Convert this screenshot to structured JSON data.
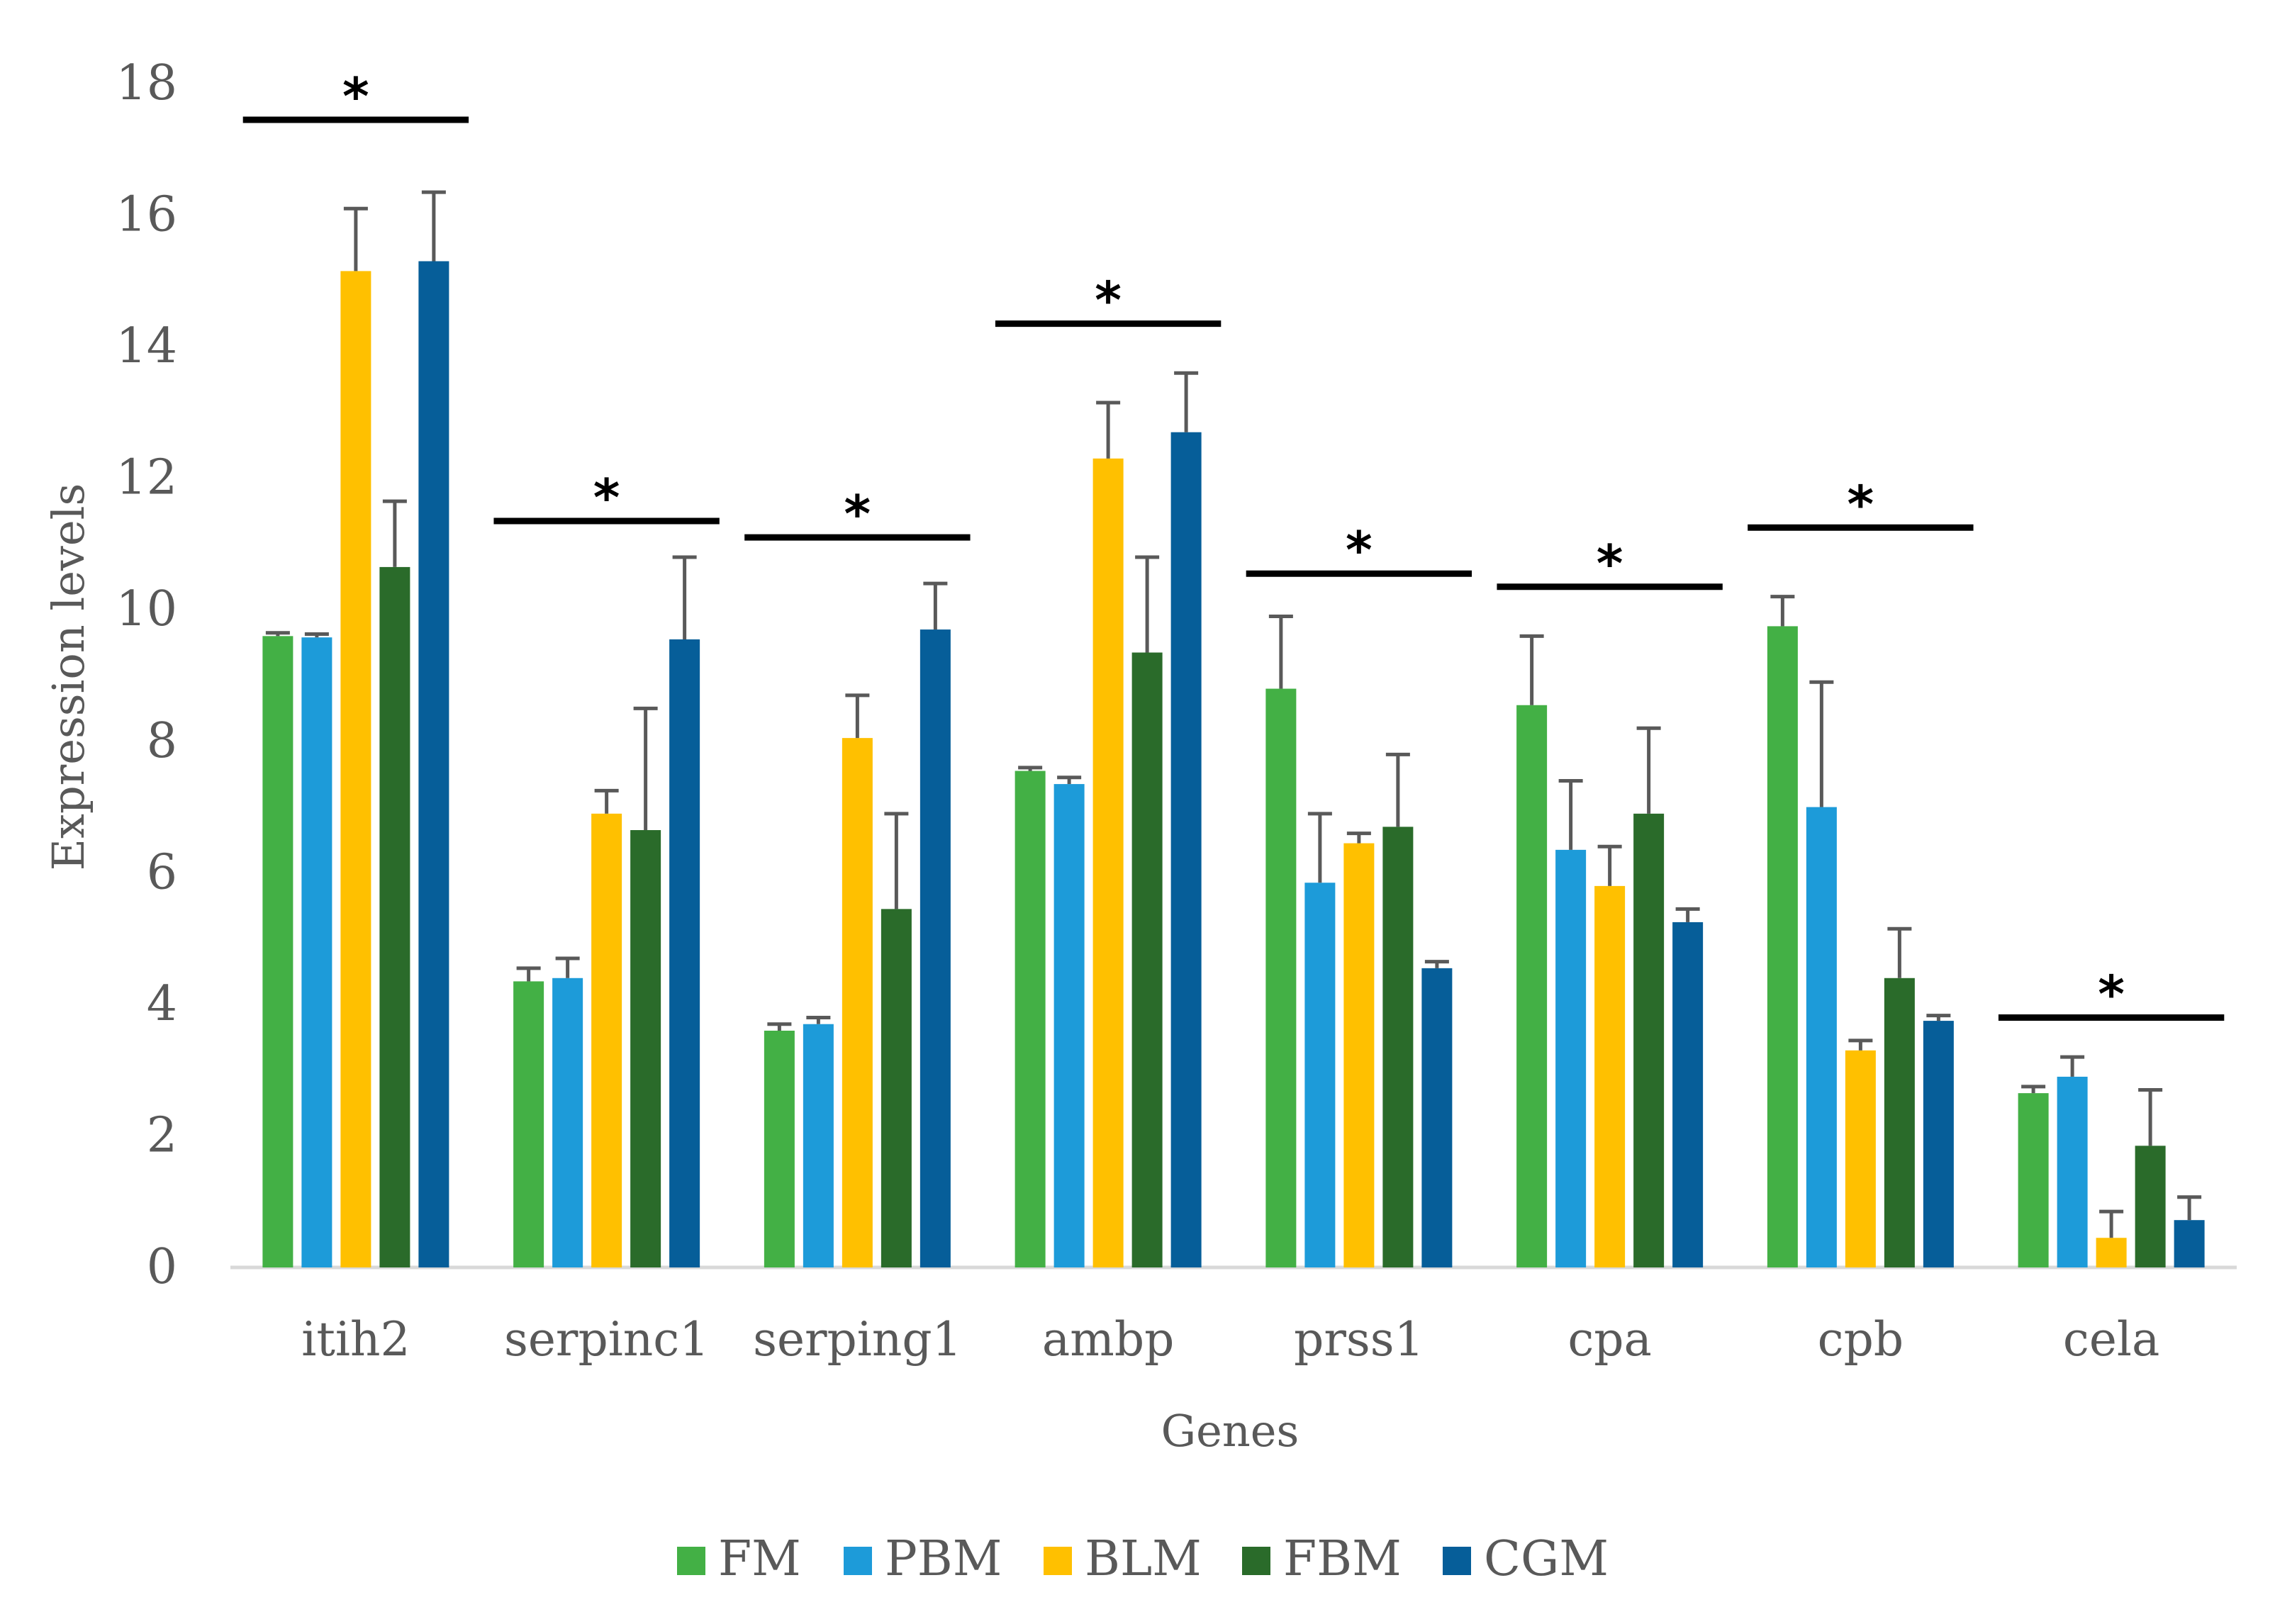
{
  "chart_data": {
    "type": "bar",
    "title": "",
    "xlabel": "Genes",
    "ylabel": "Expression  levels",
    "ylim": [
      0,
      18
    ],
    "yticks": [
      0,
      2,
      4,
      6,
      8,
      10,
      12,
      14,
      16,
      18
    ],
    "grid": false,
    "legend_position": "bottom",
    "categories": [
      "itih2",
      "serpinc1",
      "serping1",
      "ambp",
      "prss1",
      "cpa",
      "cpb",
      "cela"
    ],
    "series": [
      {
        "name": "FM",
        "color": "#43B045",
        "values": [
          9.6,
          4.35,
          3.6,
          7.55,
          8.8,
          8.55,
          9.75,
          2.65
        ],
        "errors": [
          0.05,
          0.2,
          0.1,
          0.05,
          1.1,
          1.05,
          0.45,
          0.1
        ]
      },
      {
        "name": "PBM",
        "color": "#1D9BD9",
        "values": [
          9.58,
          4.4,
          3.7,
          7.35,
          5.85,
          6.35,
          7.0,
          2.9
        ],
        "errors": [
          0.05,
          0.3,
          0.1,
          0.1,
          1.05,
          1.05,
          1.9,
          0.3
        ]
      },
      {
        "name": "BLM",
        "color": "#FFC000",
        "values": [
          15.15,
          6.9,
          8.05,
          12.3,
          6.45,
          5.8,
          3.3,
          0.45
        ],
        "errors": [
          0.95,
          0.35,
          0.65,
          0.85,
          0.15,
          0.6,
          0.15,
          0.4
        ]
      },
      {
        "name": "FBM",
        "color": "#2A6B2A",
        "values": [
          10.65,
          6.65,
          5.45,
          9.35,
          6.7,
          6.9,
          4.4,
          1.85
        ],
        "errors": [
          1.0,
          1.85,
          1.45,
          1.45,
          1.1,
          1.3,
          0.75,
          0.85
        ]
      },
      {
        "name": "CGM",
        "color": "#065E99",
        "values": [
          15.3,
          9.55,
          9.7,
          12.7,
          4.55,
          5.25,
          3.75,
          0.72
        ],
        "errors": [
          1.05,
          1.25,
          0.7,
          0.9,
          0.1,
          0.2,
          0.08,
          0.35
        ]
      }
    ],
    "annotations": [
      {
        "category": "itih2",
        "text": "*",
        "line_y": 17.45
      },
      {
        "category": "serpinc1",
        "text": "*",
        "line_y": 11.35
      },
      {
        "category": "serping1",
        "text": "*",
        "line_y": 11.1
      },
      {
        "category": "ambp",
        "text": "*",
        "line_y": 14.35
      },
      {
        "category": "prss1",
        "text": "*",
        "line_y": 10.55
      },
      {
        "category": "cpa",
        "text": "*",
        "line_y": 10.35
      },
      {
        "category": "cpb",
        "text": "*",
        "line_y": 11.25
      },
      {
        "category": "cela",
        "text": "*",
        "line_y": 3.8
      }
    ]
  }
}
